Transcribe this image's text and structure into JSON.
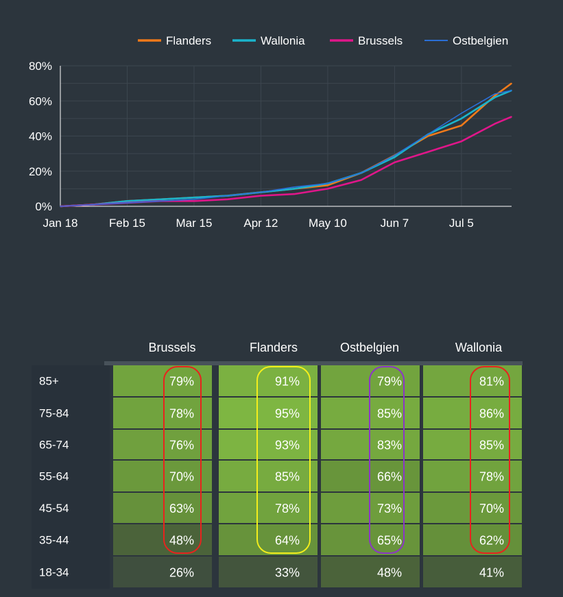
{
  "chart_data": [
    {
      "type": "line",
      "title": "",
      "xlabel": "",
      "ylabel": "",
      "x_ticks": [
        "Jan 18",
        "Feb 15",
        "Mar 15",
        "Apr 12",
        "May 10",
        "Jun 7",
        "Jul 5"
      ],
      "y_ticks": [
        "0%",
        "20%",
        "40%",
        "60%",
        "80%"
      ],
      "ylim": [
        0,
        80
      ],
      "y_unit": "%",
      "grid": true,
      "legend_position": "top-right",
      "x": [
        "Jan 18",
        "Feb 1",
        "Feb 15",
        "Mar 1",
        "Mar 15",
        "Mar 29",
        "Apr 12",
        "Apr 26",
        "May 10",
        "May 24",
        "Jun 7",
        "Jun 21",
        "Jul 5",
        "Jul 19",
        "Jul 26"
      ],
      "series": [
        {
          "name": "Flanders",
          "color": "#f07a1a",
          "values": [
            0,
            1,
            3,
            4,
            5,
            6,
            8,
            10,
            12,
            19,
            29,
            40,
            46,
            63,
            70
          ]
        },
        {
          "name": "Wallonia",
          "color": "#1ab4cc",
          "values": [
            0,
            1,
            3,
            4,
            5,
            6,
            8,
            10,
            13,
            19,
            28,
            41,
            50,
            62,
            66
          ]
        },
        {
          "name": "Brussels",
          "color": "#e0168a",
          "values": [
            0,
            1,
            2,
            3,
            3,
            4,
            6,
            7,
            10,
            15,
            25,
            31,
            37,
            47,
            51
          ]
        },
        {
          "name": "Ostbelgien",
          "color": "#2a6fd6",
          "values": [
            0,
            1,
            2,
            3,
            4,
            6,
            8,
            11,
            13,
            19,
            29,
            41,
            53,
            64,
            66
          ]
        }
      ]
    },
    {
      "type": "heatmap",
      "title": "",
      "columns": [
        "Brussels",
        "Flanders",
        "Ostbelgien",
        "Wallonia"
      ],
      "rows": [
        "85+",
        "75-84",
        "65-74",
        "55-64",
        "45-54",
        "35-44",
        "18-34"
      ],
      "values": [
        [
          79,
          91,
          79,
          81
        ],
        [
          78,
          95,
          85,
          86
        ],
        [
          76,
          93,
          83,
          85
        ],
        [
          70,
          85,
          66,
          78
        ],
        [
          63,
          78,
          73,
          70
        ],
        [
          48,
          64,
          65,
          62
        ],
        [
          26,
          33,
          48,
          41
        ]
      ],
      "value_suffix": "%",
      "highlight_outlines": [
        {
          "column": "Brussels",
          "rows": [
            "85+",
            "35-44"
          ],
          "color": "#e8231e"
        },
        {
          "column": "Flanders",
          "rows": [
            "85+",
            "35-44"
          ],
          "color": "#f3ee1c"
        },
        {
          "column": "Ostbelgien",
          "rows": [
            "85+",
            "35-44"
          ],
          "color": "#8c35c8"
        },
        {
          "column": "Wallonia",
          "rows": [
            "85+",
            "35-44"
          ],
          "color": "#e8231e"
        }
      ]
    }
  ]
}
